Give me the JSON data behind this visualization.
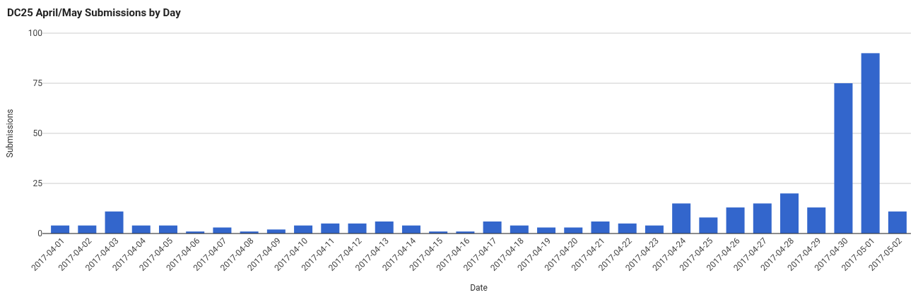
{
  "chart_data": {
    "type": "bar",
    "title": "DC25 April/May Submissions by Day",
    "xlabel": "Date",
    "ylabel": "Submissions",
    "categories": [
      "2017-04-01",
      "2017-04-02",
      "2017-04-03",
      "2017-04-04",
      "2017-04-05",
      "2017-04-06",
      "2017-04-07",
      "2017-04-08",
      "2017-04-09",
      "2017-04-10",
      "2017-04-11",
      "2017-04-12",
      "2017-04-13",
      "2017-04-14",
      "2017-04-15",
      "2017-04-16",
      "2017-04-17",
      "2017-04-18",
      "2017-04-19",
      "2017-04-20",
      "2017-04-21",
      "2017-04-22",
      "2017-04-23",
      "2017-04-24",
      "2017-04-25",
      "2017-04-26",
      "2017-04-27",
      "2017-04-28",
      "2017-04-29",
      "2017-04-30",
      "2017-05-01",
      "2017-05-02"
    ],
    "values": [
      4,
      4,
      11,
      4,
      4,
      1,
      3,
      1,
      2,
      4,
      5,
      5,
      6,
      4,
      1,
      1,
      6,
      4,
      3,
      3,
      6,
      5,
      4,
      15,
      8,
      13,
      15,
      20,
      13,
      75,
      90,
      11
    ],
    "color": "#3366cc",
    "ylim": [
      0,
      100
    ],
    "yticks": [
      0,
      25,
      50,
      75,
      100
    ],
    "grid": "y"
  }
}
